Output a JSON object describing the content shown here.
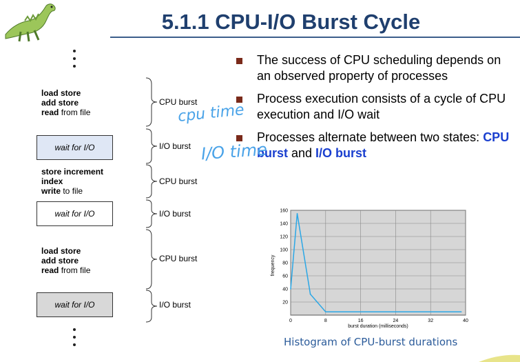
{
  "slide": {
    "title": "5.1.1 CPU-I/O Burst Cycle"
  },
  "left_column": {
    "code_blocks": [
      {
        "lines": [
          {
            "bold": "load store",
            "rest": ""
          },
          {
            "bold": "add store",
            "rest": ""
          },
          {
            "bold": "read",
            "rest": " from file"
          }
        ]
      },
      {
        "lines": [
          {
            "bold": "store increment",
            "rest": ""
          },
          {
            "bold": "index",
            "rest": ""
          },
          {
            "bold": "write",
            "rest": " to file"
          }
        ]
      },
      {
        "lines": [
          {
            "bold": "load store",
            "rest": ""
          },
          {
            "bold": "add store",
            "rest": ""
          },
          {
            "bold": "read",
            "rest": " from file"
          }
        ]
      }
    ],
    "wait_boxes": [
      "wait for I/O",
      "wait for I/O",
      "wait for I/O"
    ],
    "wait_box_fills": [
      "#dfe7f5",
      "#ffffff",
      "#d8d8d8"
    ],
    "bursts": [
      "CPU burst",
      "I/O burst",
      "CPU burst",
      "I/O burst",
      "CPU burst",
      "I/O burst"
    ]
  },
  "bullets": [
    {
      "text": "The success of CPU scheduling depends on an observed property of processes"
    },
    {
      "text": "Process execution consists of a cycle of CPU execution and I/O wait"
    },
    {
      "pre": "Processes alternate between two states: ",
      "hl1": "CPU burst",
      "mid": " and ",
      "hl2": "I/O burst"
    }
  ],
  "annotations": {
    "cpu_time": "cpu time",
    "io_time": "I/O time"
  },
  "caption": "Histogram of CPU-burst durations",
  "colors": {
    "title": "#1f3f6e",
    "bullet_square": "#7a2a1a",
    "highlight": "#1a3fcf",
    "handwriting": "#4aa3e8",
    "chart_line": "#2aa7e6",
    "chart_bg": "#d6d6d6"
  },
  "chart_data": {
    "type": "line",
    "xlabel": "burst duration (milliseconds)",
    "ylabel": "frequency",
    "xlim": [
      0,
      40
    ],
    "ylim": [
      0,
      160
    ],
    "x_ticks": [
      0,
      8,
      16,
      24,
      32,
      40
    ],
    "y_ticks": [
      20,
      40,
      60,
      80,
      100,
      120,
      140,
      160
    ],
    "grid": true,
    "series": [
      {
        "x": [
          0,
          1.5,
          4.5,
          8,
          12,
          16,
          20,
          24,
          28,
          32,
          36,
          39
        ],
        "y": [
          40,
          155,
          32,
          5,
          5,
          5,
          5,
          5,
          5,
          5,
          5,
          5
        ]
      }
    ]
  }
}
